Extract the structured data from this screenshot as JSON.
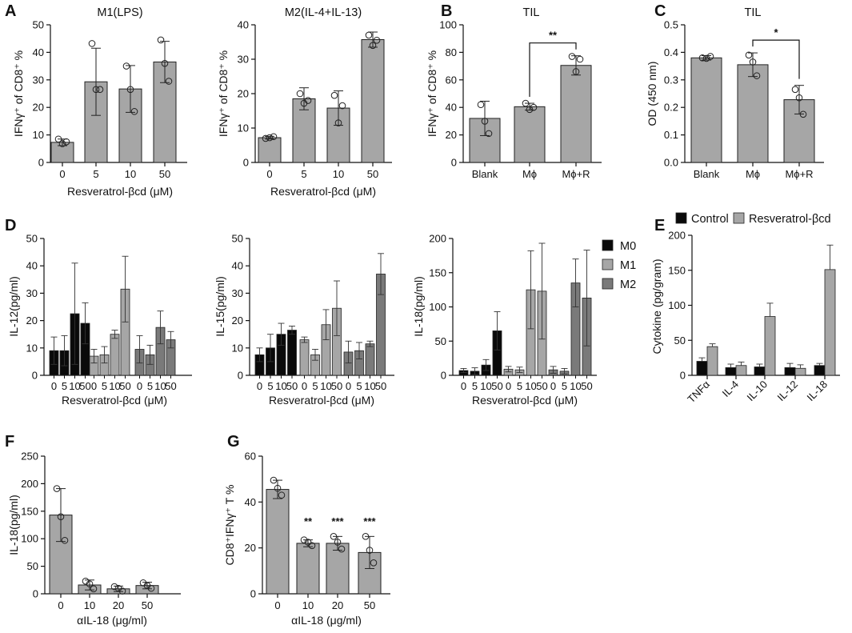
{
  "colors": {
    "black": "#0a0a0a",
    "light": "#a6a6a6",
    "mid": "#7a7a7a",
    "bar": "#a6a6a6"
  },
  "panel_labels": [
    "A",
    "B",
    "C",
    "D",
    "E",
    "F",
    "G"
  ],
  "chart_data": [
    {
      "id": "A1",
      "panel": "A",
      "type": "bar",
      "title": "M1(LPS)",
      "ylabel": "IFNγ⁺ of CD8⁺ %",
      "xlabel": "Resveratrol-βcd (μM)",
      "categories": [
        "0",
        "5",
        "10",
        "50"
      ],
      "values": [
        7.3,
        29.3,
        26.7,
        36.5
      ],
      "errors": [
        1.2,
        12.2,
        8.5,
        7.5
      ],
      "points": [
        [
          8.5,
          6.8,
          7.5
        ],
        [
          43.2,
          26.5,
          26.5
        ],
        [
          35.0,
          26.5,
          18.5
        ],
        [
          44.5,
          36.0,
          29.5
        ]
      ],
      "ylim": [
        0,
        50
      ],
      "yticks": [
        0,
        10,
        20,
        30,
        40,
        50
      ]
    },
    {
      "id": "A2",
      "panel": "A",
      "type": "bar",
      "title": "M2(IL-4+IL-13)",
      "ylabel": "IFNγ⁺ of CD8⁺ %",
      "xlabel": "Resveratrol-βcd (μM)",
      "categories": [
        "0",
        "5",
        "10",
        "50"
      ],
      "values": [
        7.2,
        18.5,
        15.8,
        35.7
      ],
      "errors": [
        0.4,
        3.2,
        5.0,
        2.2
      ],
      "points": [
        [
          7.0,
          7.2,
          7.5
        ],
        [
          20.0,
          17.2,
          18.0
        ],
        [
          19.5,
          11.5,
          16.5
        ],
        [
          37.0,
          34.0,
          35.5
        ]
      ],
      "ylim": [
        0,
        40
      ],
      "yticks": [
        0,
        10,
        20,
        30,
        40
      ]
    },
    {
      "id": "B",
      "panel": "B",
      "type": "bar",
      "title": "TIL",
      "ylabel": "IFNγ⁺ of CD8⁺ %",
      "xlabel": "",
      "categories": [
        "Blank",
        "Mϕ",
        "Mϕ+R"
      ],
      "values": [
        32,
        40.5,
        70.5
      ],
      "errors": [
        12.5,
        2.5,
        7.0
      ],
      "points": [
        [
          42,
          30,
          21
        ],
        [
          43,
          38.5,
          40
        ],
        [
          77,
          66,
          75
        ]
      ],
      "ylim": [
        0,
        100
      ],
      "yticks": [
        0,
        20,
        40,
        60,
        80,
        100
      ],
      "significance": [
        {
          "from": 1,
          "to": 2,
          "label": "**"
        }
      ]
    },
    {
      "id": "C",
      "panel": "C",
      "type": "bar",
      "title": "TIL",
      "ylabel": "OD (450 nm)",
      "xlabel": "",
      "categories": [
        "Blank",
        "Mϕ",
        "Mϕ+R"
      ],
      "values": [
        0.38,
        0.355,
        0.228
      ],
      "errors": [
        0.008,
        0.043,
        0.052
      ],
      "points": [
        [
          0.38,
          0.378,
          0.385
        ],
        [
          0.39,
          0.365,
          0.315
        ],
        [
          0.265,
          0.235,
          0.175
        ]
      ],
      "ylim": [
        0,
        0.5
      ],
      "yticks": [
        "0.0",
        "0.1",
        "0.2",
        "0.3",
        "0.4",
        "0.5"
      ],
      "significance": [
        {
          "from": 1,
          "to": 2,
          "label": "*"
        }
      ]
    },
    {
      "id": "D1",
      "panel": "D",
      "type": "grouped-bar",
      "ylabel": "IL-12(pg/ml)",
      "xlabel": "Resveratrol-βcd (μM)",
      "categories": [
        "0",
        "5",
        "10",
        "50"
      ],
      "ylim": [
        0,
        50
      ],
      "yticks": [
        0,
        10,
        20,
        30,
        40,
        50
      ],
      "series": [
        {
          "name": "M0",
          "values": [
            9,
            9,
            22.5,
            19
          ],
          "errors": [
            5,
            5.5,
            18.5,
            7.5
          ]
        },
        {
          "name": "M1",
          "values": [
            7,
            7.5,
            15,
            31.5
          ],
          "errors": [
            2.5,
            3,
            1.5,
            12
          ]
        },
        {
          "name": "M2",
          "values": [
            9.5,
            7.5,
            17.5,
            13
          ],
          "errors": [
            5,
            3.5,
            6,
            3
          ]
        }
      ]
    },
    {
      "id": "D2",
      "panel": "D",
      "type": "grouped-bar",
      "ylabel": "IL-15(pg/ml)",
      "xlabel": "Resveratrol-βcd (μM)",
      "categories": [
        "0",
        "5",
        "10",
        "50"
      ],
      "ylim": [
        0,
        50
      ],
      "yticks": [
        0,
        10,
        20,
        30,
        40,
        50
      ],
      "series": [
        {
          "name": "M0",
          "values": [
            7.5,
            10,
            15,
            16.5
          ],
          "errors": [
            2.5,
            5,
            4,
            1.5
          ]
        },
        {
          "name": "M1",
          "values": [
            13,
            7.5,
            18.5,
            24.5
          ],
          "errors": [
            1,
            2,
            5.5,
            10
          ]
        },
        {
          "name": "M2",
          "values": [
            8.5,
            9,
            11.5,
            37
          ],
          "errors": [
            4,
            3,
            1,
            7.5
          ]
        }
      ]
    },
    {
      "id": "D3",
      "panel": "D",
      "type": "grouped-bar",
      "ylabel": "IL-18(pg/ml)",
      "xlabel": "Resveratrol-βcd (μM)",
      "categories": [
        "0",
        "5",
        "10",
        "50"
      ],
      "ylim": [
        0,
        200
      ],
      "yticks": [
        0,
        50,
        100,
        150,
        200
      ],
      "series": [
        {
          "name": "M0",
          "values": [
            7,
            6,
            15,
            65
          ],
          "errors": [
            3,
            5,
            8,
            28
          ]
        },
        {
          "name": "M1",
          "values": [
            9,
            8,
            125,
            123
          ],
          "errors": [
            4,
            4,
            57,
            70
          ]
        },
        {
          "name": "M2",
          "values": [
            8,
            6,
            135,
            113
          ],
          "errors": [
            5,
            4,
            35,
            70
          ]
        }
      ],
      "legend": [
        "M0",
        "M1",
        "M2"
      ]
    },
    {
      "id": "E",
      "panel": "E",
      "type": "grouped-bar",
      "ylabel": "Cytokine (pg/gram)",
      "xlabel": "",
      "categories": [
        "TNFα",
        "IL-4",
        "IL-10",
        "IL-12",
        "IL-18"
      ],
      "ylim": [
        0,
        200
      ],
      "yticks": [
        0,
        50,
        100,
        150,
        200
      ],
      "series": [
        {
          "name": "Control",
          "values": [
            20,
            11,
            12,
            11,
            14
          ],
          "errors": [
            5,
            5,
            4,
            6,
            3
          ]
        },
        {
          "name": "Resveratrol-βcd",
          "values": [
            41,
            14,
            84,
            10,
            151
          ],
          "errors": [
            4,
            5,
            19,
            5,
            35
          ]
        }
      ],
      "legend": [
        "Control",
        "Resveratrol-βcd"
      ]
    },
    {
      "id": "F",
      "panel": "F",
      "type": "bar",
      "ylabel": "IL-18(pg/ml)",
      "xlabel": "αIL-18 (μg/ml)",
      "categories": [
        "0",
        "10",
        "20",
        "50"
      ],
      "values": [
        143,
        16,
        9,
        15
      ],
      "errors": [
        48,
        9,
        5,
        6
      ],
      "points": [
        [
          191,
          140,
          97
        ],
        [
          23,
          18,
          9
        ],
        [
          13,
          10,
          5
        ],
        [
          20,
          15,
          10
        ]
      ],
      "ylim": [
        0,
        250
      ],
      "yticks": [
        0,
        50,
        100,
        150,
        200,
        250
      ]
    },
    {
      "id": "G",
      "panel": "G",
      "type": "bar",
      "ylabel": "CD8⁺IFNγ⁺ T %",
      "xlabel": "αIL-18 (μg/ml)",
      "categories": [
        "0",
        "10",
        "20",
        "50"
      ],
      "values": [
        45.5,
        22,
        22,
        18
      ],
      "errors": [
        4,
        1.5,
        3,
        7
      ],
      "points": [
        [
          49.5,
          46,
          43
        ],
        [
          23.5,
          22.5,
          21
        ],
        [
          25,
          22.5,
          19.5
        ],
        [
          25,
          19,
          13.5
        ]
      ],
      "ylim": [
        0,
        60
      ],
      "yticks": [
        0,
        20,
        40,
        60
      ],
      "annotations": [
        "",
        "**",
        "***",
        "***"
      ]
    }
  ]
}
